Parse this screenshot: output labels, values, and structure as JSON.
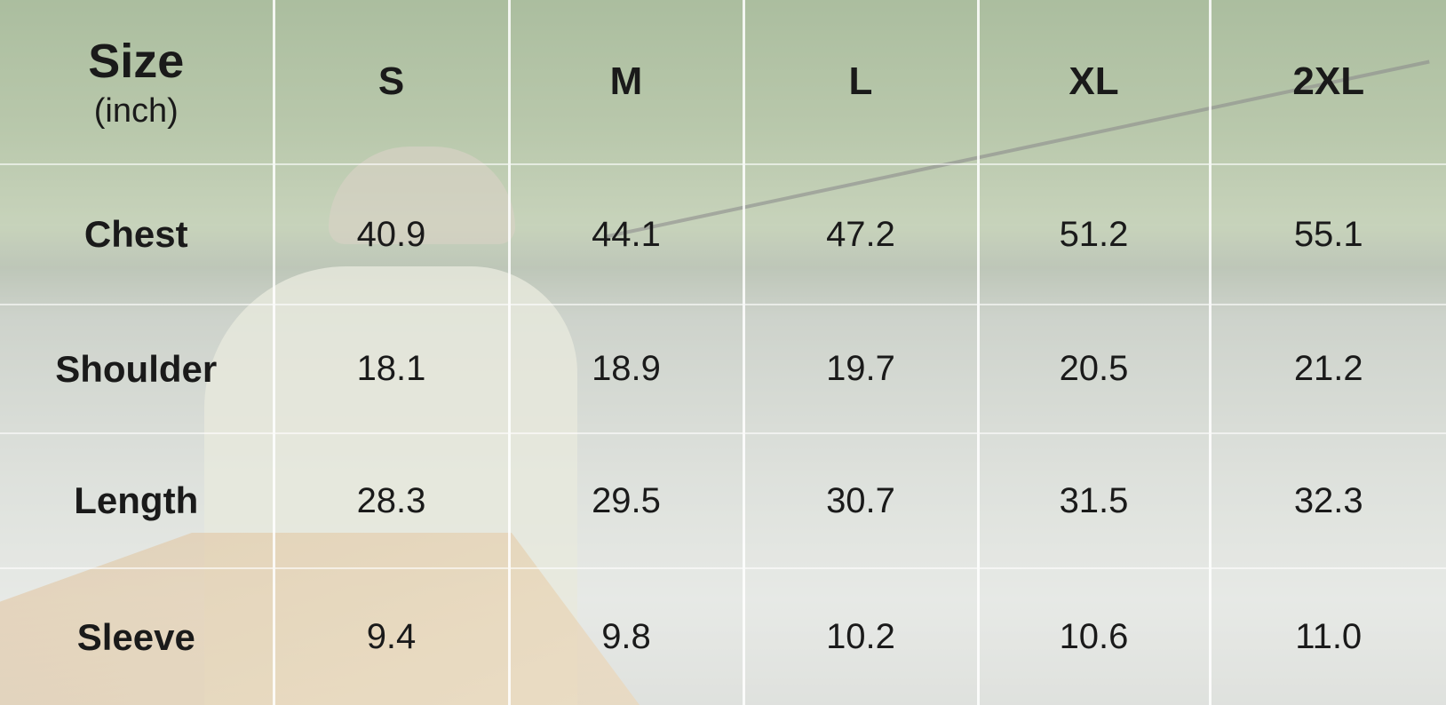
{
  "header": {
    "title": "Size",
    "unit": "(inch)",
    "sizes": [
      "S",
      "M",
      "L",
      "XL",
      "2XL"
    ]
  },
  "rows": [
    {
      "label": "Chest",
      "values": [
        "40.9",
        "44.1",
        "47.2",
        "51.2",
        "55.1"
      ]
    },
    {
      "label": "Shoulder",
      "values": [
        "18.1",
        "18.9",
        "19.7",
        "20.5",
        "21.2"
      ]
    },
    {
      "label": "Length",
      "values": [
        "28.3",
        "29.5",
        "30.7",
        "31.5",
        "32.3"
      ]
    },
    {
      "label": "Sleeve",
      "values": [
        "9.4",
        "9.8",
        "10.2",
        "10.6",
        "11.0"
      ]
    }
  ]
}
